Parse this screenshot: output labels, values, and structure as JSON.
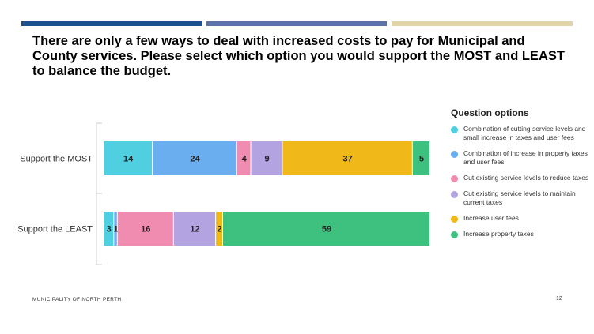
{
  "slide": {
    "title": "There are only a few ways to deal with increased costs to pay for Municipal and County services. Please select which option you would support the MOST and LEAST to balance the budget.",
    "footer": "MUNICIPALITY OF NORTH PERTH",
    "page_number": "12",
    "top_bar_colors": [
      "#1f4e8c",
      "#5a73a8",
      "#e2d3a8"
    ]
  },
  "chart_data": {
    "type": "bar",
    "orientation": "horizontal",
    "stacked": true,
    "categories": [
      "Support the MOST",
      "Support the LEAST"
    ],
    "series": [
      {
        "name": "Combination of cutting service levels and small increase in taxes and user fees",
        "color": "#4fcfe0",
        "values": [
          14,
          3
        ]
      },
      {
        "name": "Combination of increase in property taxes and user fees",
        "color": "#6aaef0",
        "values": [
          24,
          1
        ]
      },
      {
        "name": "Cut existing service levels to reduce taxes",
        "color": "#f08cb0",
        "values": [
          4,
          16
        ]
      },
      {
        "name": "Cut existing service levels to maintain current taxes",
        "color": "#b3a3e0",
        "values": [
          9,
          12
        ]
      },
      {
        "name": "Increase user fees",
        "color": "#f0b818",
        "values": [
          37,
          2
        ]
      },
      {
        "name": "Increase property taxes",
        "color": "#3ec07e",
        "values": [
          5,
          59
        ]
      }
    ],
    "legend_title": "Question options",
    "legend_position": "right",
    "grid": false
  }
}
